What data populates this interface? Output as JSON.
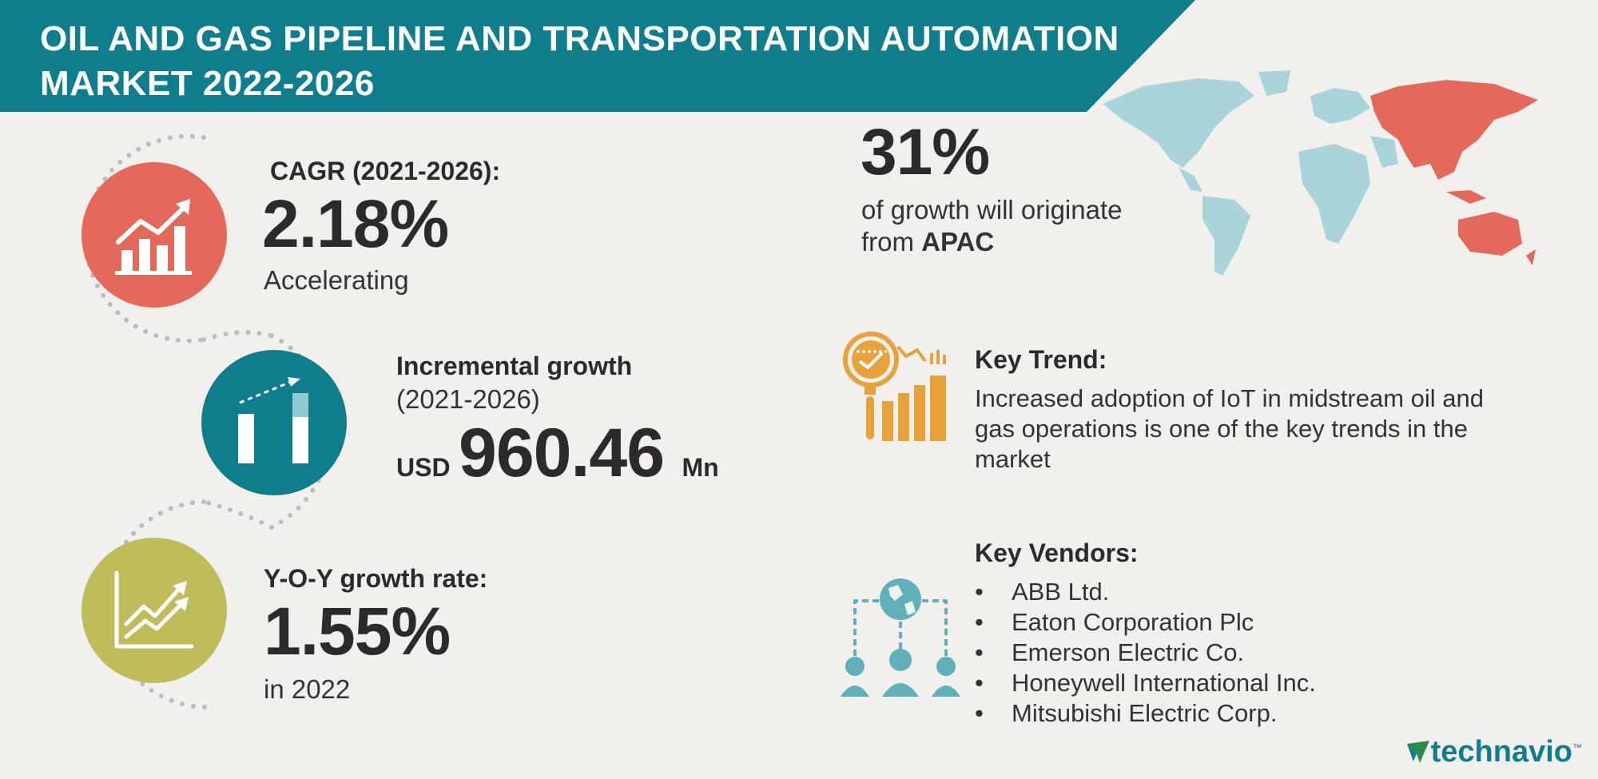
{
  "header": {
    "title_line1": "OIL AND GAS PIPELINE AND TRANSPORTATION AUTOMATION",
    "title_line2": "MARKET 2022-2026",
    "band_color": "#0e7d8c"
  },
  "metrics": {
    "cagr": {
      "label": "CAGR (2021-2026):",
      "value": "2.18%",
      "note": "Accelerating",
      "icon": "bar-chart-up-icon",
      "color": "#e5695a"
    },
    "incremental": {
      "label": "Incremental growth",
      "period": "(2021-2026)",
      "currency": "USD",
      "value": "960.46",
      "unit": "Mn",
      "icon": "growth-bars-icon",
      "color": "#0e7d8c"
    },
    "yoy": {
      "label": "Y-O-Y growth rate:",
      "value": "1.55%",
      "note": "in 2022",
      "icon": "trend-lines-icon",
      "color": "#bfbd5a"
    }
  },
  "region": {
    "percent": "31%",
    "text_prefix": "of growth will originate",
    "text_from": "from",
    "region_name": "APAC",
    "highlight_color": "#e5695a",
    "map_color": "#a9d4d9"
  },
  "key_trend": {
    "title": "Key Trend:",
    "body": "Increased adoption of IoT in midstream oil and gas operations is one of the key trends in the market",
    "icon": "magnifier-chart-icon",
    "color": "#e8a23a"
  },
  "key_vendors": {
    "title": "Key Vendors:",
    "bullet": "•",
    "items": [
      "ABB Ltd.",
      "Eaton Corporation Plc",
      "Emerson Electric Co.",
      "Honeywell International Inc.",
      "Mitsubishi Electric Corp."
    ],
    "icon": "network-people-icon",
    "color": "#5fb0b8"
  },
  "brand": {
    "name_part1": "tech",
    "name_part2": "navio",
    "tm": "™",
    "color1": "#0e7d8c",
    "color2": "#0e7d8c",
    "logo_color": "#2e8b4e"
  }
}
